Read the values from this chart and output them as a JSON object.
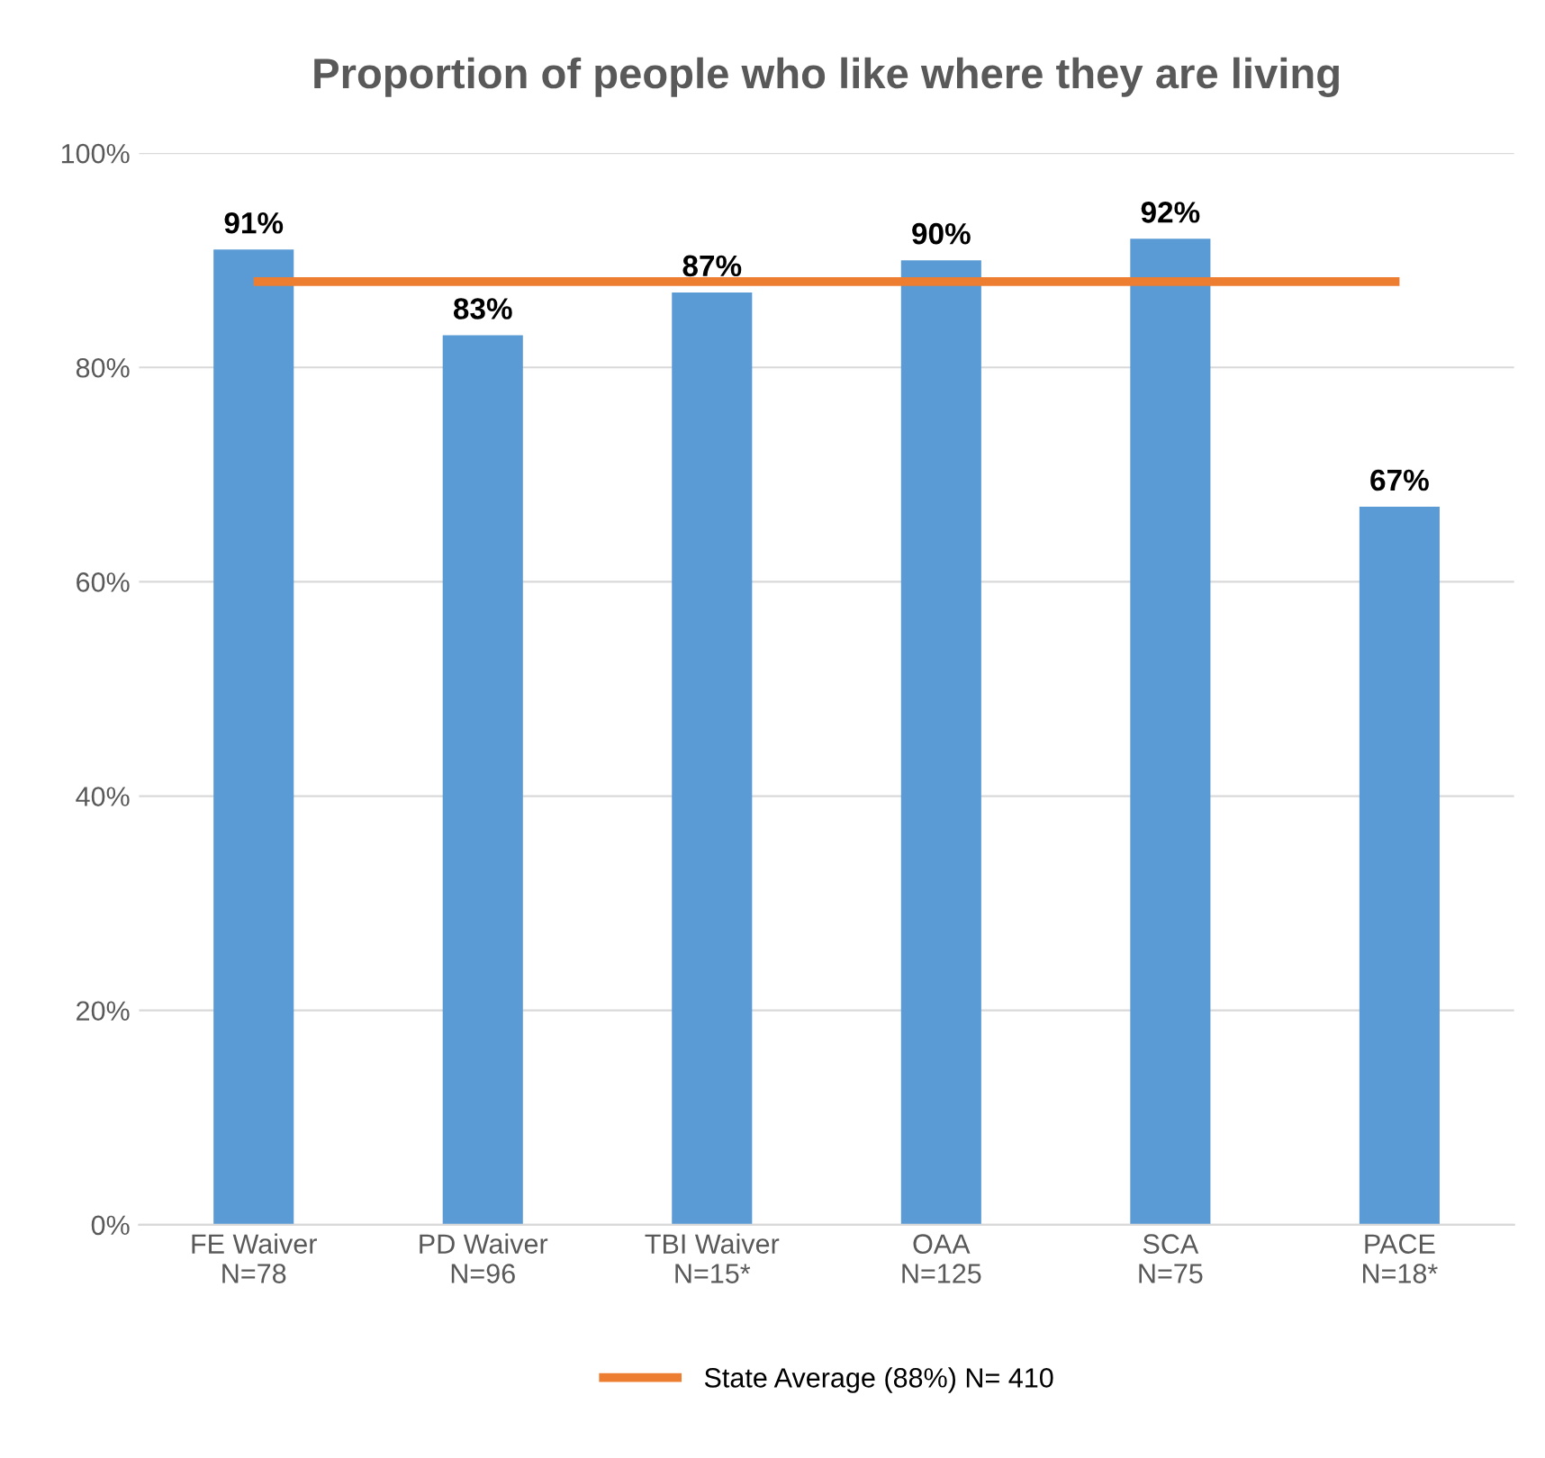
{
  "chart_data": {
    "type": "bar",
    "title": "Proportion of people who like where they are living",
    "categories": [
      "FE Waiver\nN=78",
      "PD Waiver\nN=96",
      "TBI Waiver\nN=15*",
      "OAA\nN=125",
      "SCA\nN=75",
      "PACE\nN=18*"
    ],
    "series": [
      {
        "color": "#5b9bd5",
        "values": [
          91,
          83,
          87,
          90,
          92,
          67
        ],
        "value_labels": [
          "91%",
          "83%",
          "87%",
          "90%",
          "92%",
          "67%"
        ]
      },
      {
        "type": "line",
        "name": "State Average (88%) N= 410",
        "color": "#ed7d31",
        "values": [
          88,
          88,
          88,
          88,
          88,
          88
        ]
      }
    ],
    "ylim": [
      0,
      100
    ],
    "yticks": [
      {
        "value": 0,
        "label": "0%"
      },
      {
        "value": 20,
        "label": "20%"
      },
      {
        "value": 40,
        "label": "40%"
      },
      {
        "value": 60,
        "label": "60%"
      },
      {
        "value": 80,
        "label": "80%"
      },
      {
        "value": 100,
        "label": "100%"
      }
    ],
    "grid": "y",
    "legend": "bottom"
  }
}
